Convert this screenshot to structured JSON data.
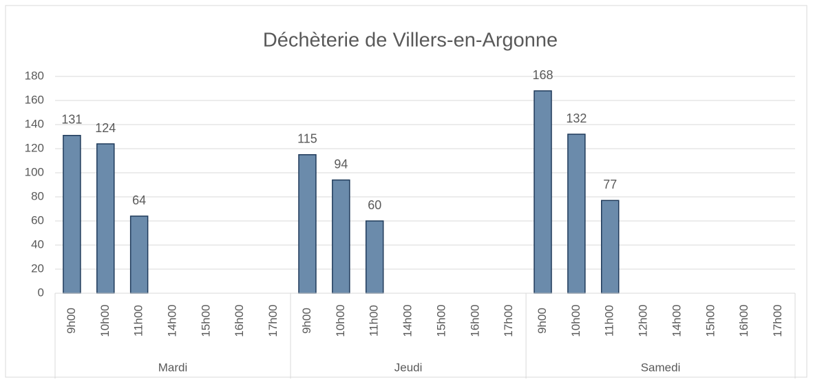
{
  "chart_data": {
    "type": "bar",
    "title": "Déchèterie de Villers-en-Argonne",
    "groups": [
      {
        "name": "Mardi",
        "categories": [
          "9h00",
          "10h00",
          "11h00",
          "14h00",
          "15h00",
          "16h00",
          "17h00"
        ],
        "values": [
          131,
          124,
          64,
          null,
          null,
          null,
          null
        ]
      },
      {
        "name": "Jeudi",
        "categories": [
          "9h00",
          "10h00",
          "11h00",
          "14h00",
          "15h00",
          "16h00",
          "17h00"
        ],
        "values": [
          115,
          94,
          60,
          null,
          null,
          null,
          null
        ]
      },
      {
        "name": "Samedi",
        "categories": [
          "9h00",
          "10h00",
          "11h00",
          "12h00",
          "14h00",
          "15h00",
          "16h00",
          "17h00"
        ],
        "values": [
          168,
          132,
          77,
          null,
          null,
          null,
          null,
          null
        ]
      }
    ],
    "color": "#6b8bab",
    "edge_color": "#1f3a5a",
    "ylim": [
      0,
      180
    ],
    "yticks": [
      0,
      20,
      40,
      60,
      80,
      100,
      120,
      140,
      160,
      180
    ],
    "grid": true
  }
}
